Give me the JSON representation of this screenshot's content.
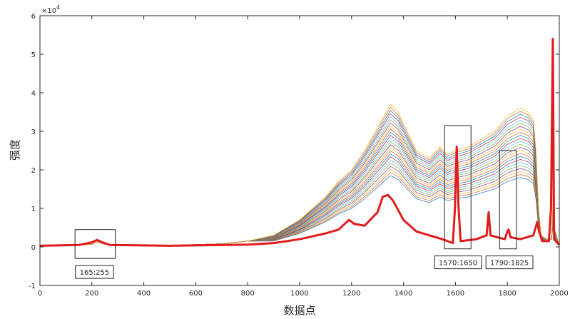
{
  "chart_data": {
    "type": "line",
    "xlabel": "数据点",
    "ylabel": "强度",
    "xlim": [
      0,
      2000
    ],
    "ylim": [
      -1,
      6
    ],
    "xticks": [
      0,
      200,
      400,
      600,
      800,
      1000,
      1200,
      1400,
      1600,
      1800,
      2000
    ],
    "yticks": [
      -1,
      0,
      1,
      2,
      3,
      4,
      5,
      6
    ],
    "y_exponent_label": "×10",
    "y_exponent_power": "4",
    "grid": false,
    "legend": "none",
    "band_points": [
      [
        0,
        0.03
      ],
      [
        150,
        0.05
      ],
      [
        200,
        0.07
      ],
      [
        220,
        0.13
      ],
      [
        250,
        0.07
      ],
      [
        300,
        0.04
      ],
      [
        500,
        0.04
      ],
      [
        700,
        0.08
      ],
      [
        800,
        0.15
      ],
      [
        900,
        0.3
      ],
      [
        1000,
        0.7
      ],
      [
        1100,
        1.3
      ],
      [
        1150,
        1.7
      ],
      [
        1200,
        2.0
      ],
      [
        1230,
        2.3
      ],
      [
        1250,
        2.5
      ],
      [
        1300,
        3.1
      ],
      [
        1350,
        3.7
      ],
      [
        1380,
        3.5
      ],
      [
        1400,
        3.2
      ],
      [
        1450,
        2.5
      ],
      [
        1500,
        2.3
      ],
      [
        1540,
        2.6
      ],
      [
        1570,
        2.4
      ],
      [
        1600,
        2.5
      ],
      [
        1650,
        2.6
      ],
      [
        1700,
        2.8
      ],
      [
        1750,
        3.0
      ],
      [
        1800,
        3.4
      ],
      [
        1850,
        3.6
      ],
      [
        1880,
        3.5
      ],
      [
        1900,
        3.3
      ],
      [
        1910,
        2.5
      ],
      [
        1920,
        1.0
      ],
      [
        1930,
        0.3
      ],
      [
        1950,
        0.2
      ],
      [
        1970,
        0.2
      ],
      [
        1975,
        1.0
      ],
      [
        1978,
        5.0
      ],
      [
        1980,
        0.5
      ],
      [
        2000,
        0.05
      ]
    ],
    "band_series_count": 24,
    "band_scale_range": [
      0.5,
      1.0
    ],
    "band_palette": [
      "#0072bd",
      "#d95319",
      "#edb120",
      "#7e2f8e",
      "#77ac30",
      "#4dbeee",
      "#a2142f"
    ],
    "series": [
      {
        "color": "#e31a1c",
        "points": [
          [
            0,
            0.03
          ],
          [
            150,
            0.05
          ],
          [
            200,
            0.12
          ],
          [
            220,
            0.18
          ],
          [
            240,
            0.12
          ],
          [
            270,
            0.05
          ],
          [
            500,
            0.03
          ],
          [
            800,
            0.06
          ],
          [
            900,
            0.1
          ],
          [
            1000,
            0.2
          ],
          [
            1100,
            0.35
          ],
          [
            1150,
            0.45
          ],
          [
            1190,
            0.7
          ],
          [
            1210,
            0.6
          ],
          [
            1250,
            0.55
          ],
          [
            1300,
            0.9
          ],
          [
            1320,
            1.3
          ],
          [
            1340,
            1.35
          ],
          [
            1360,
            1.2
          ],
          [
            1400,
            0.7
          ],
          [
            1450,
            0.4
          ],
          [
            1500,
            0.3
          ],
          [
            1550,
            0.2
          ],
          [
            1590,
            0.1
          ],
          [
            1598,
            1.0
          ],
          [
            1605,
            2.6
          ],
          [
            1612,
            1.0
          ],
          [
            1620,
            0.15
          ],
          [
            1680,
            0.2
          ],
          [
            1720,
            0.3
          ],
          [
            1728,
            0.9
          ],
          [
            1735,
            0.3
          ],
          [
            1790,
            0.2
          ],
          [
            1800,
            0.4
          ],
          [
            1805,
            0.45
          ],
          [
            1812,
            0.25
          ],
          [
            1850,
            0.2
          ],
          [
            1900,
            0.3
          ],
          [
            1915,
            0.65
          ],
          [
            1922,
            0.4
          ],
          [
            1935,
            0.15
          ],
          [
            1960,
            0.15
          ],
          [
            1968,
            1.0
          ],
          [
            1975,
            5.4
          ],
          [
            1980,
            0.2
          ],
          [
            2000,
            0.05
          ]
        ]
      }
    ],
    "regions": [
      {
        "x": [
          135,
          290
        ],
        "y": [
          -0.3,
          0.45
        ],
        "label": "165:255",
        "label_x": 210,
        "label_y": -0.65
      },
      {
        "x": [
          1558,
          1660
        ],
        "y": [
          -0.05,
          3.15
        ],
        "label": "1570:1650",
        "label_x": 1610,
        "label_y": -0.4
      },
      {
        "x": [
          1770,
          1835
        ],
        "y": [
          -0.05,
          2.5
        ],
        "label": "1790:1825",
        "label_x": 1808,
        "label_y": -0.4
      }
    ]
  }
}
